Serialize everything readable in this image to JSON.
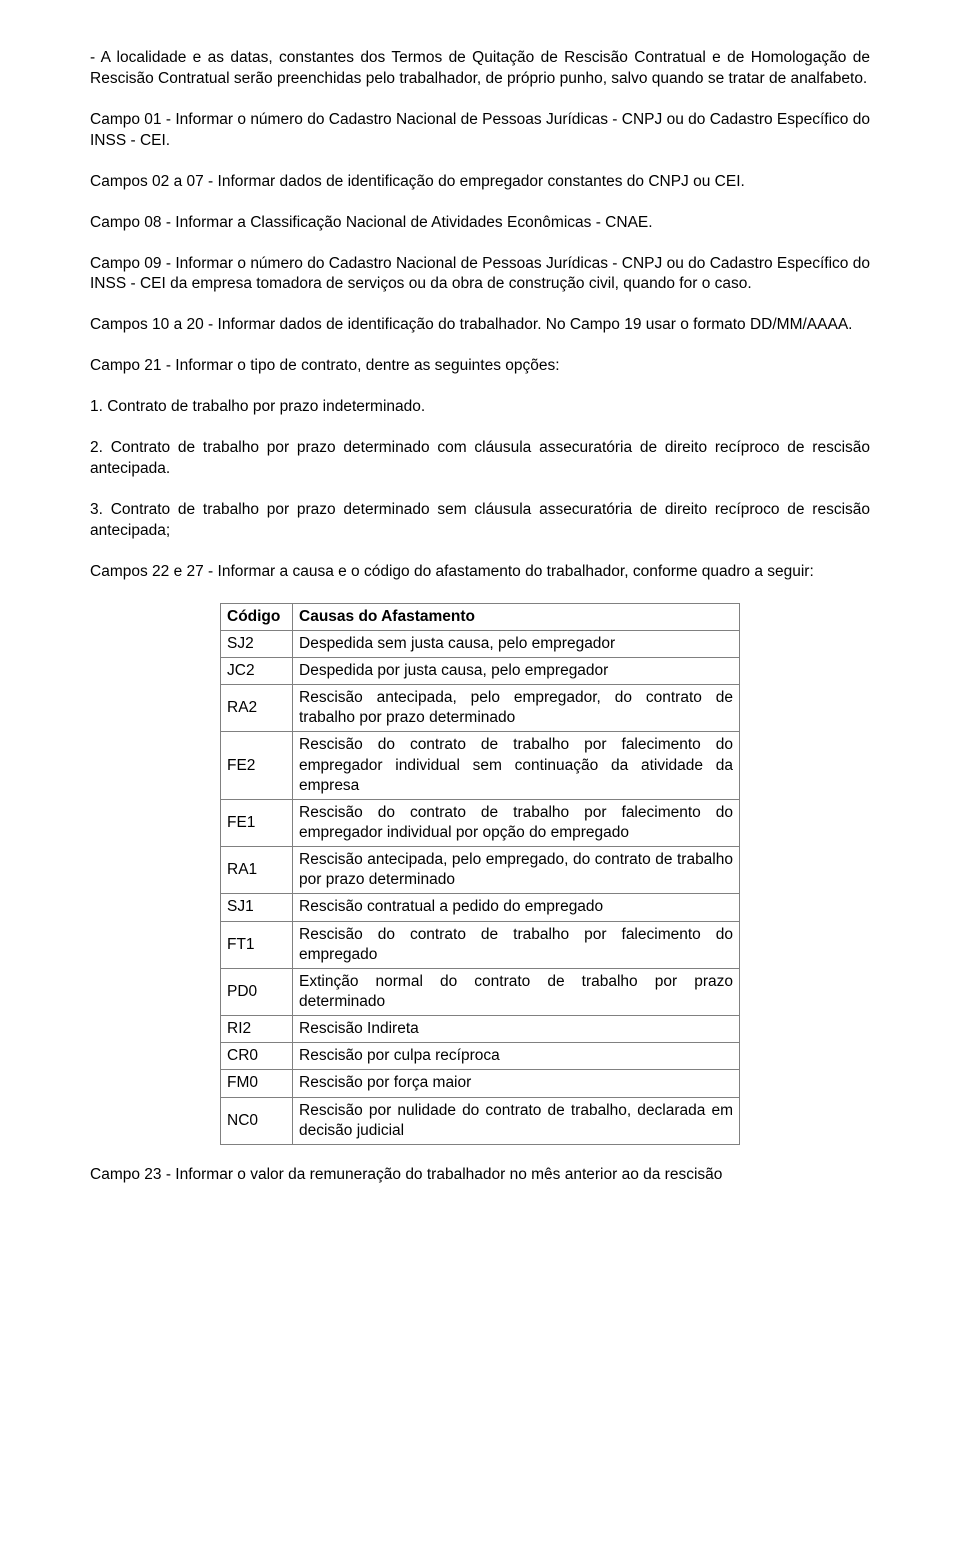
{
  "paragraphs": {
    "p1": "- A localidade e as datas, constantes dos Termos de Quitação de Rescisão Contratual e de Homologação de Rescisão Contratual serão preenchidas pelo trabalhador, de próprio punho, salvo quando se tratar de analfabeto.",
    "p2": "Campo 01 - Informar o número do Cadastro Nacional de Pessoas Jurídicas - CNPJ ou do Cadastro Específico do INSS - CEI.",
    "p3": "Campos 02 a 07 - Informar dados de identificação do empregador constantes do CNPJ ou CEI.",
    "p4": "Campo 08 - Informar a Classificação Nacional de Atividades Econômicas - CNAE.",
    "p5": "Campo 09 - Informar o número do Cadastro Nacional de Pessoas Jurídicas - CNPJ ou do Cadastro Específico do INSS - CEI da empresa tomadora de serviços ou da obra de construção civil, quando for o caso.",
    "p6": "Campos 10 a 20 - Informar dados de identificação do trabalhador. No Campo 19 usar o formato DD/MM/AAAA.",
    "p7": "Campo 21 - Informar o tipo de contrato, dentre as seguintes opções:",
    "p8": "1. Contrato de trabalho por prazo indeterminado.",
    "p9": "2. Contrato de trabalho por prazo determinado com cláusula assecuratória de direito recíproco de rescisão antecipada.",
    "p10": "3. Contrato de trabalho por prazo determinado sem cláusula assecuratória de direito recíproco de rescisão antecipada;",
    "p11": "Campos 22 e 27 - Informar a causa e o código do afastamento do trabalhador, conforme quadro a seguir:",
    "p12": "Campo 23 - Informar o valor da remuneração do trabalhador no mês anterior ao da rescisão"
  },
  "table": {
    "header": {
      "col1": "Código",
      "col2": "Causas do Afastamento"
    },
    "rows": [
      {
        "code": "SJ2",
        "desc": "Despedida sem justa causa, pelo empregador",
        "justify": false
      },
      {
        "code": "JC2",
        "desc": "Despedida por justa causa, pelo empregador",
        "justify": false
      },
      {
        "code": "RA2",
        "desc": "Rescisão antecipada, pelo empregador, do contrato de trabalho por prazo determinado",
        "justify": true
      },
      {
        "code": "FE2",
        "desc": "Rescisão do contrato de trabalho por falecimento do empregador individual sem continuação da atividade da empresa",
        "justify": true
      },
      {
        "code": "FE1",
        "desc": "Rescisão do contrato de trabalho por falecimento do empregador individual por opção do empregado",
        "justify": true
      },
      {
        "code": "RA1",
        "desc": "Rescisão antecipada, pelo empregado, do contrato de trabalho por prazo determinado",
        "justify": true
      },
      {
        "code": "SJ1",
        "desc": "Rescisão contratual a pedido do empregado",
        "justify": false
      },
      {
        "code": "FT1",
        "desc": "Rescisão do contrato de trabalho por falecimento do empregado",
        "justify": true
      },
      {
        "code": "PD0",
        "desc": "Extinção normal do contrato de trabalho por prazo determinado",
        "justify": true
      },
      {
        "code": "RI2",
        "desc": "Rescisão Indireta",
        "justify": false
      },
      {
        "code": "CR0",
        "desc": "Rescisão por culpa recíproca",
        "justify": false
      },
      {
        "code": "FM0",
        "desc": "Rescisão por força maior",
        "justify": false
      },
      {
        "code": "NC0",
        "desc": "Rescisão por nulidade do contrato de trabalho, declarada em decisão judicial",
        "justify": true
      }
    ]
  }
}
